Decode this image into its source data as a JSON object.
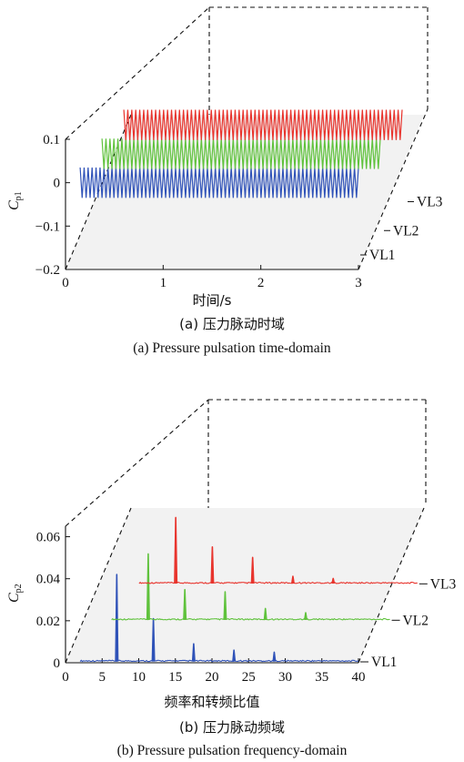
{
  "chart_data": [
    {
      "panel": "a",
      "type": "line",
      "projection": "3d-waterfall",
      "xlabel": "时间/s",
      "ylabel_main": "C",
      "ylabel_sub": "p1",
      "xlim": [
        0,
        3
      ],
      "ylim": [
        -0.2,
        0.1
      ],
      "x_ticks": [
        "0",
        "1",
        "2",
        "3"
      ],
      "y_ticks": [
        "−0.2",
        "−0.1",
        "0",
        "0.1"
      ],
      "caption_cn": "(a) 压力脉动时域",
      "caption_en": "(a) Pressure pulsation time-domain",
      "series": [
        {
          "name": "VL1",
          "color": "#2f52b8",
          "t_start": 0.15,
          "t_end": 3.0,
          "mean": 0.0,
          "amplitude": 0.035,
          "cycles": 70
        },
        {
          "name": "VL2",
          "color": "#5fc23c",
          "t_start": 0.15,
          "t_end": 3.0,
          "mean": 0.0,
          "amplitude": 0.035,
          "cycles": 70
        },
        {
          "name": "VL3",
          "color": "#e8342d",
          "t_start": 0.15,
          "t_end": 3.0,
          "mean": 0.0,
          "amplitude": 0.035,
          "cycles": 70
        }
      ]
    },
    {
      "panel": "b",
      "type": "line",
      "projection": "3d-waterfall",
      "xlabel": "频率和转频比值",
      "ylabel_main": "C",
      "ylabel_sub": "p2",
      "xlim": [
        0,
        40
      ],
      "ylim": [
        0,
        0.065
      ],
      "x_ticks": [
        "0",
        "5",
        "10",
        "15",
        "20",
        "25",
        "30",
        "35",
        "40"
      ],
      "y_ticks": [
        "0",
        "0.02",
        "0.04",
        "0.06"
      ],
      "caption_cn": "(b) 压力脉动频域",
      "caption_en": "(b) Pressure pulsation frequency-domain",
      "series": [
        {
          "name": "VL1",
          "color": "#2f52b8",
          "baseline": 0.0006,
          "x_start": 2,
          "peaks": [
            {
              "x": 7,
              "y": 0.042
            },
            {
              "x": 12,
              "y": 0.021
            },
            {
              "x": 17.5,
              "y": 0.009
            },
            {
              "x": 23,
              "y": 0.006
            },
            {
              "x": 28.5,
              "y": 0.005
            }
          ]
        },
        {
          "name": "VL2",
          "color": "#5fc23c",
          "baseline": 0.0006,
          "x_start": 2,
          "peaks": [
            {
              "x": 7,
              "y": 0.032
            },
            {
              "x": 12,
              "y": 0.015
            },
            {
              "x": 17.5,
              "y": 0.014
            },
            {
              "x": 23,
              "y": 0.006
            },
            {
              "x": 28.5,
              "y": 0.004
            }
          ]
        },
        {
          "name": "VL3",
          "color": "#e8342d",
          "baseline": 0.0006,
          "x_start": 2,
          "peaks": [
            {
              "x": 7,
              "y": 0.032
            },
            {
              "x": 12,
              "y": 0.018
            },
            {
              "x": 17.5,
              "y": 0.013
            },
            {
              "x": 23,
              "y": 0.004
            },
            {
              "x": 28.5,
              "y": 0.003
            }
          ]
        }
      ]
    }
  ]
}
